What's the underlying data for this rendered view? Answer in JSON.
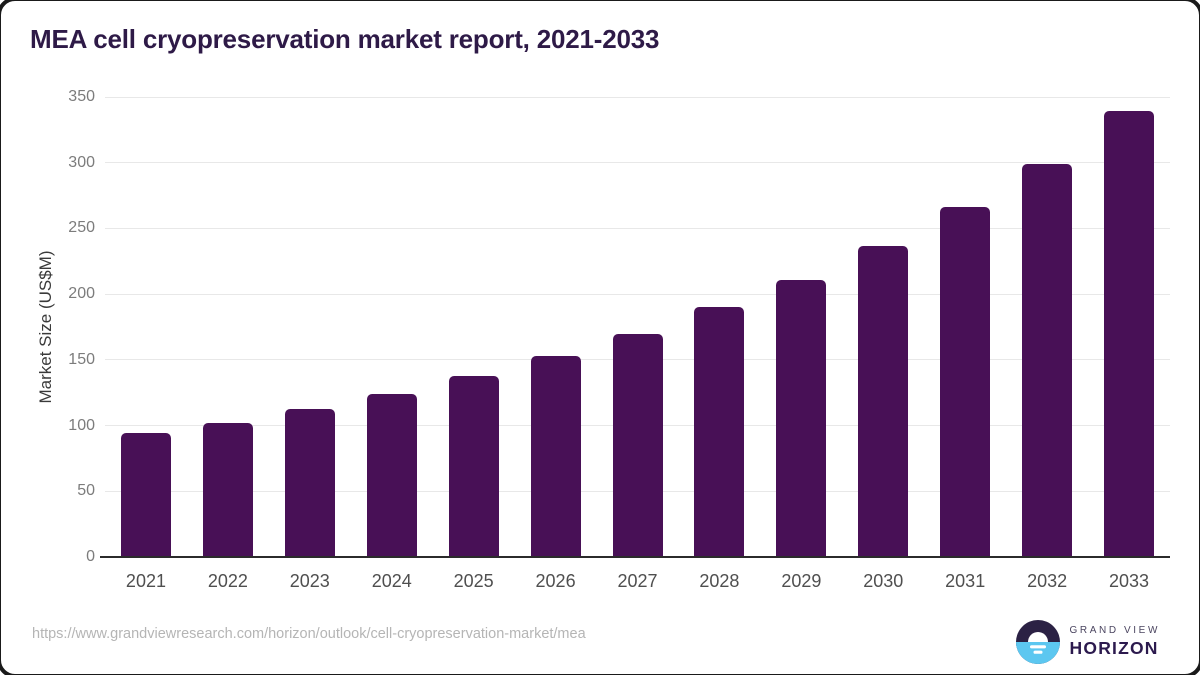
{
  "chart_data": {
    "type": "bar",
    "title": "MEA cell cryopreservation market report, 2021-2033",
    "categories": [
      "2021",
      "2022",
      "2023",
      "2024",
      "2025",
      "2026",
      "2027",
      "2028",
      "2029",
      "2030",
      "2031",
      "2032",
      "2033"
    ],
    "values": [
      94,
      102,
      113,
      124,
      138,
      153,
      170,
      190,
      211,
      237,
      266,
      299,
      339
    ],
    "xlabel": "",
    "ylabel": "Market Size (US$M)",
    "ylim": [
      0,
      350
    ],
    "ytick_step": 50,
    "grid": true,
    "legend": "none",
    "bar_color": "#481056",
    "grid_color": "#e8e8e8",
    "axis_color": "#2b2b2b",
    "tick_color": "#7c7c7c",
    "title_color": "#2e1a47"
  },
  "footer": {
    "source_url": "https://www.grandviewresearch.com/horizon/outlook/cell-cryopreservation-market/mea",
    "logo": {
      "line1": "GRAND VIEW",
      "line2": "HORIZON",
      "mark_top_color": "#2b2144",
      "mark_bottom_color": "#5cc7f0"
    }
  }
}
